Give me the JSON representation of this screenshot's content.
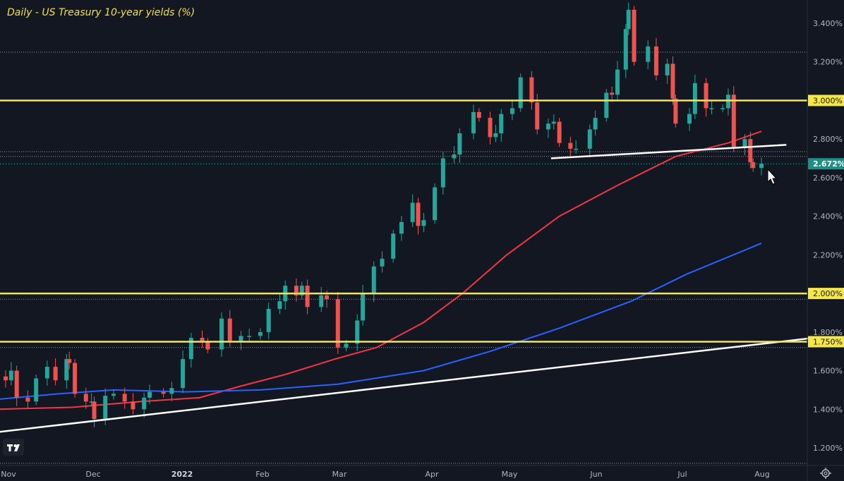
{
  "chart_data": {
    "type": "candlestick",
    "title": "Daily - US Treasury 10-year yields (%)",
    "ylim": [
      1.1,
      3.52
    ],
    "y_ticks": [
      "3.400%",
      "3.200%",
      "2.800%",
      "2.600%",
      "2.400%",
      "2.200%",
      "1.800%",
      "1.600%",
      "1.400%",
      "1.200%"
    ],
    "x_ticks": [
      "Nov",
      "Dec",
      "2022",
      "Feb",
      "Mar",
      "Apr",
      "May",
      "Jun",
      "Jul",
      "Aug"
    ],
    "grid": false,
    "current_value": 2.672,
    "current_label": "2.672%",
    "horizontal_levels": [
      {
        "value": 3.0,
        "label": "3.000%",
        "color": "#f5e74a"
      },
      {
        "value": 2.0,
        "label": "2.000%",
        "color": "#f5e74a"
      },
      {
        "value": 1.75,
        "label": "1.750%",
        "color": "#f5e74a"
      }
    ],
    "trendlines": [
      {
        "from": [
          "2021-10-28",
          1.28
        ],
        "to": [
          "2022-08-20",
          1.77
        ],
        "color": "#ffffff"
      },
      {
        "from": [
          "2022-05-17",
          2.7
        ],
        "to": [
          "2022-08-10",
          2.77
        ],
        "color": "#ffffff"
      }
    ],
    "moving_averages": [
      {
        "color": "#f23645",
        "points": [
          [
            "2021-10-28",
            1.4
          ],
          [
            "2021-11-25",
            1.41
          ],
          [
            "2021-12-20",
            1.44
          ],
          [
            "2022-01-10",
            1.46
          ],
          [
            "2022-01-25",
            1.52
          ],
          [
            "2022-02-10",
            1.58
          ],
          [
            "2022-02-28",
            1.66
          ],
          [
            "2022-03-15",
            1.72
          ],
          [
            "2022-04-01",
            1.85
          ],
          [
            "2022-04-15",
            2.0
          ],
          [
            "2022-05-01",
            2.2
          ],
          [
            "2022-05-20",
            2.4
          ],
          [
            "2022-06-10",
            2.56
          ],
          [
            "2022-07-01",
            2.71
          ],
          [
            "2022-07-20",
            2.78
          ],
          [
            "2022-08-01",
            2.84
          ]
        ]
      },
      {
        "color": "#2962ff",
        "points": [
          [
            "2021-10-28",
            1.45
          ],
          [
            "2021-11-20",
            1.48
          ],
          [
            "2021-12-10",
            1.5
          ],
          [
            "2022-01-05",
            1.49
          ],
          [
            "2022-02-01",
            1.5
          ],
          [
            "2022-03-01",
            1.53
          ],
          [
            "2022-04-01",
            1.6
          ],
          [
            "2022-04-25",
            1.7
          ],
          [
            "2022-05-20",
            1.82
          ],
          [
            "2022-06-15",
            1.96
          ],
          [
            "2022-07-05",
            2.1
          ],
          [
            "2022-08-01",
            2.26
          ]
        ]
      }
    ],
    "dotted_levels": [
      3.25,
      2.735,
      2.71,
      1.97,
      1.72,
      1.12
    ],
    "candle_colors": {
      "up": "#26a69a",
      "down": "#ef5350"
    },
    "closes": [
      [
        "2021-10-28",
        1.57
      ],
      [
        "2021-11-01",
        1.55
      ],
      [
        "2021-11-03",
        1.6
      ],
      [
        "2021-11-05",
        1.46
      ],
      [
        "2021-11-09",
        1.44
      ],
      [
        "2021-11-12",
        1.56
      ],
      [
        "2021-11-16",
        1.62
      ],
      [
        "2021-11-19",
        1.55
      ],
      [
        "2021-11-23",
        1.66
      ],
      [
        "2021-11-24",
        1.64
      ],
      [
        "2021-11-26",
        1.48
      ],
      [
        "2021-11-30",
        1.44
      ],
      [
        "2021-12-02",
        1.44
      ],
      [
        "2021-12-03",
        1.35
      ],
      [
        "2021-12-07",
        1.47
      ],
      [
        "2021-12-10",
        1.48
      ],
      [
        "2021-12-14",
        1.44
      ],
      [
        "2021-12-17",
        1.4
      ],
      [
        "2021-12-21",
        1.46
      ],
      [
        "2021-12-23",
        1.49
      ],
      [
        "2021-12-28",
        1.48
      ],
      [
        "2021-12-31",
        1.51
      ],
      [
        "2022-01-04",
        1.66
      ],
      [
        "2022-01-07",
        1.77
      ],
      [
        "2022-01-11",
        1.75
      ],
      [
        "2022-01-13",
        1.71
      ],
      [
        "2022-01-18",
        1.87
      ],
      [
        "2022-01-21",
        1.75
      ],
      [
        "2022-01-25",
        1.78
      ],
      [
        "2022-01-28",
        1.78
      ],
      [
        "2022-02-01",
        1.8
      ],
      [
        "2022-02-04",
        1.92
      ],
      [
        "2022-02-08",
        1.96
      ],
      [
        "2022-02-10",
        2.04
      ],
      [
        "2022-02-14",
        1.99
      ],
      [
        "2022-02-16",
        2.04
      ],
      [
        "2022-02-18",
        1.93
      ],
      [
        "2022-02-23",
        1.99
      ],
      [
        "2022-02-25",
        1.97
      ],
      [
        "2022-03-01",
        1.72
      ],
      [
        "2022-03-04",
        1.74
      ],
      [
        "2022-03-08",
        1.86
      ],
      [
        "2022-03-10",
        2.0
      ],
      [
        "2022-03-14",
        2.14
      ],
      [
        "2022-03-17",
        2.18
      ],
      [
        "2022-03-21",
        2.31
      ],
      [
        "2022-03-24",
        2.37
      ],
      [
        "2022-03-28",
        2.47
      ],
      [
        "2022-03-30",
        2.35
      ],
      [
        "2022-04-01",
        2.38
      ],
      [
        "2022-04-05",
        2.55
      ],
      [
        "2022-04-08",
        2.7
      ],
      [
        "2022-04-12",
        2.72
      ],
      [
        "2022-04-14",
        2.83
      ],
      [
        "2022-04-19",
        2.94
      ],
      [
        "2022-04-21",
        2.91
      ],
      [
        "2022-04-25",
        2.81
      ],
      [
        "2022-04-27",
        2.83
      ],
      [
        "2022-04-29",
        2.93
      ],
      [
        "2022-05-03",
        2.96
      ],
      [
        "2022-05-06",
        3.12
      ],
      [
        "2022-05-10",
        2.99
      ],
      [
        "2022-05-12",
        2.85
      ],
      [
        "2022-05-16",
        2.88
      ],
      [
        "2022-05-18",
        2.89
      ],
      [
        "2022-05-20",
        2.78
      ],
      [
        "2022-05-24",
        2.75
      ],
      [
        "2022-05-26",
        2.75
      ],
      [
        "2022-05-31",
        2.85
      ],
      [
        "2022-06-02",
        2.91
      ],
      [
        "2022-06-06",
        3.04
      ],
      [
        "2022-06-08",
        3.03
      ],
      [
        "2022-06-10",
        3.16
      ],
      [
        "2022-06-13",
        3.37
      ],
      [
        "2022-06-14",
        3.47
      ],
      [
        "2022-06-16",
        3.2
      ],
      [
        "2022-06-21",
        3.28
      ],
      [
        "2022-06-24",
        3.13
      ],
      [
        "2022-06-28",
        3.19
      ],
      [
        "2022-06-30",
        3.01
      ],
      [
        "2022-07-01",
        2.88
      ],
      [
        "2022-07-06",
        2.93
      ],
      [
        "2022-07-08",
        3.09
      ],
      [
        "2022-07-12",
        2.96
      ],
      [
        "2022-07-14",
        2.96
      ],
      [
        "2022-07-18",
        2.96
      ],
      [
        "2022-07-20",
        3.03
      ],
      [
        "2022-07-22",
        2.76
      ],
      [
        "2022-07-26",
        2.8
      ],
      [
        "2022-07-28",
        2.68
      ],
      [
        "2022-07-29",
        2.65
      ],
      [
        "2022-08-01",
        2.672
      ]
    ]
  }
}
